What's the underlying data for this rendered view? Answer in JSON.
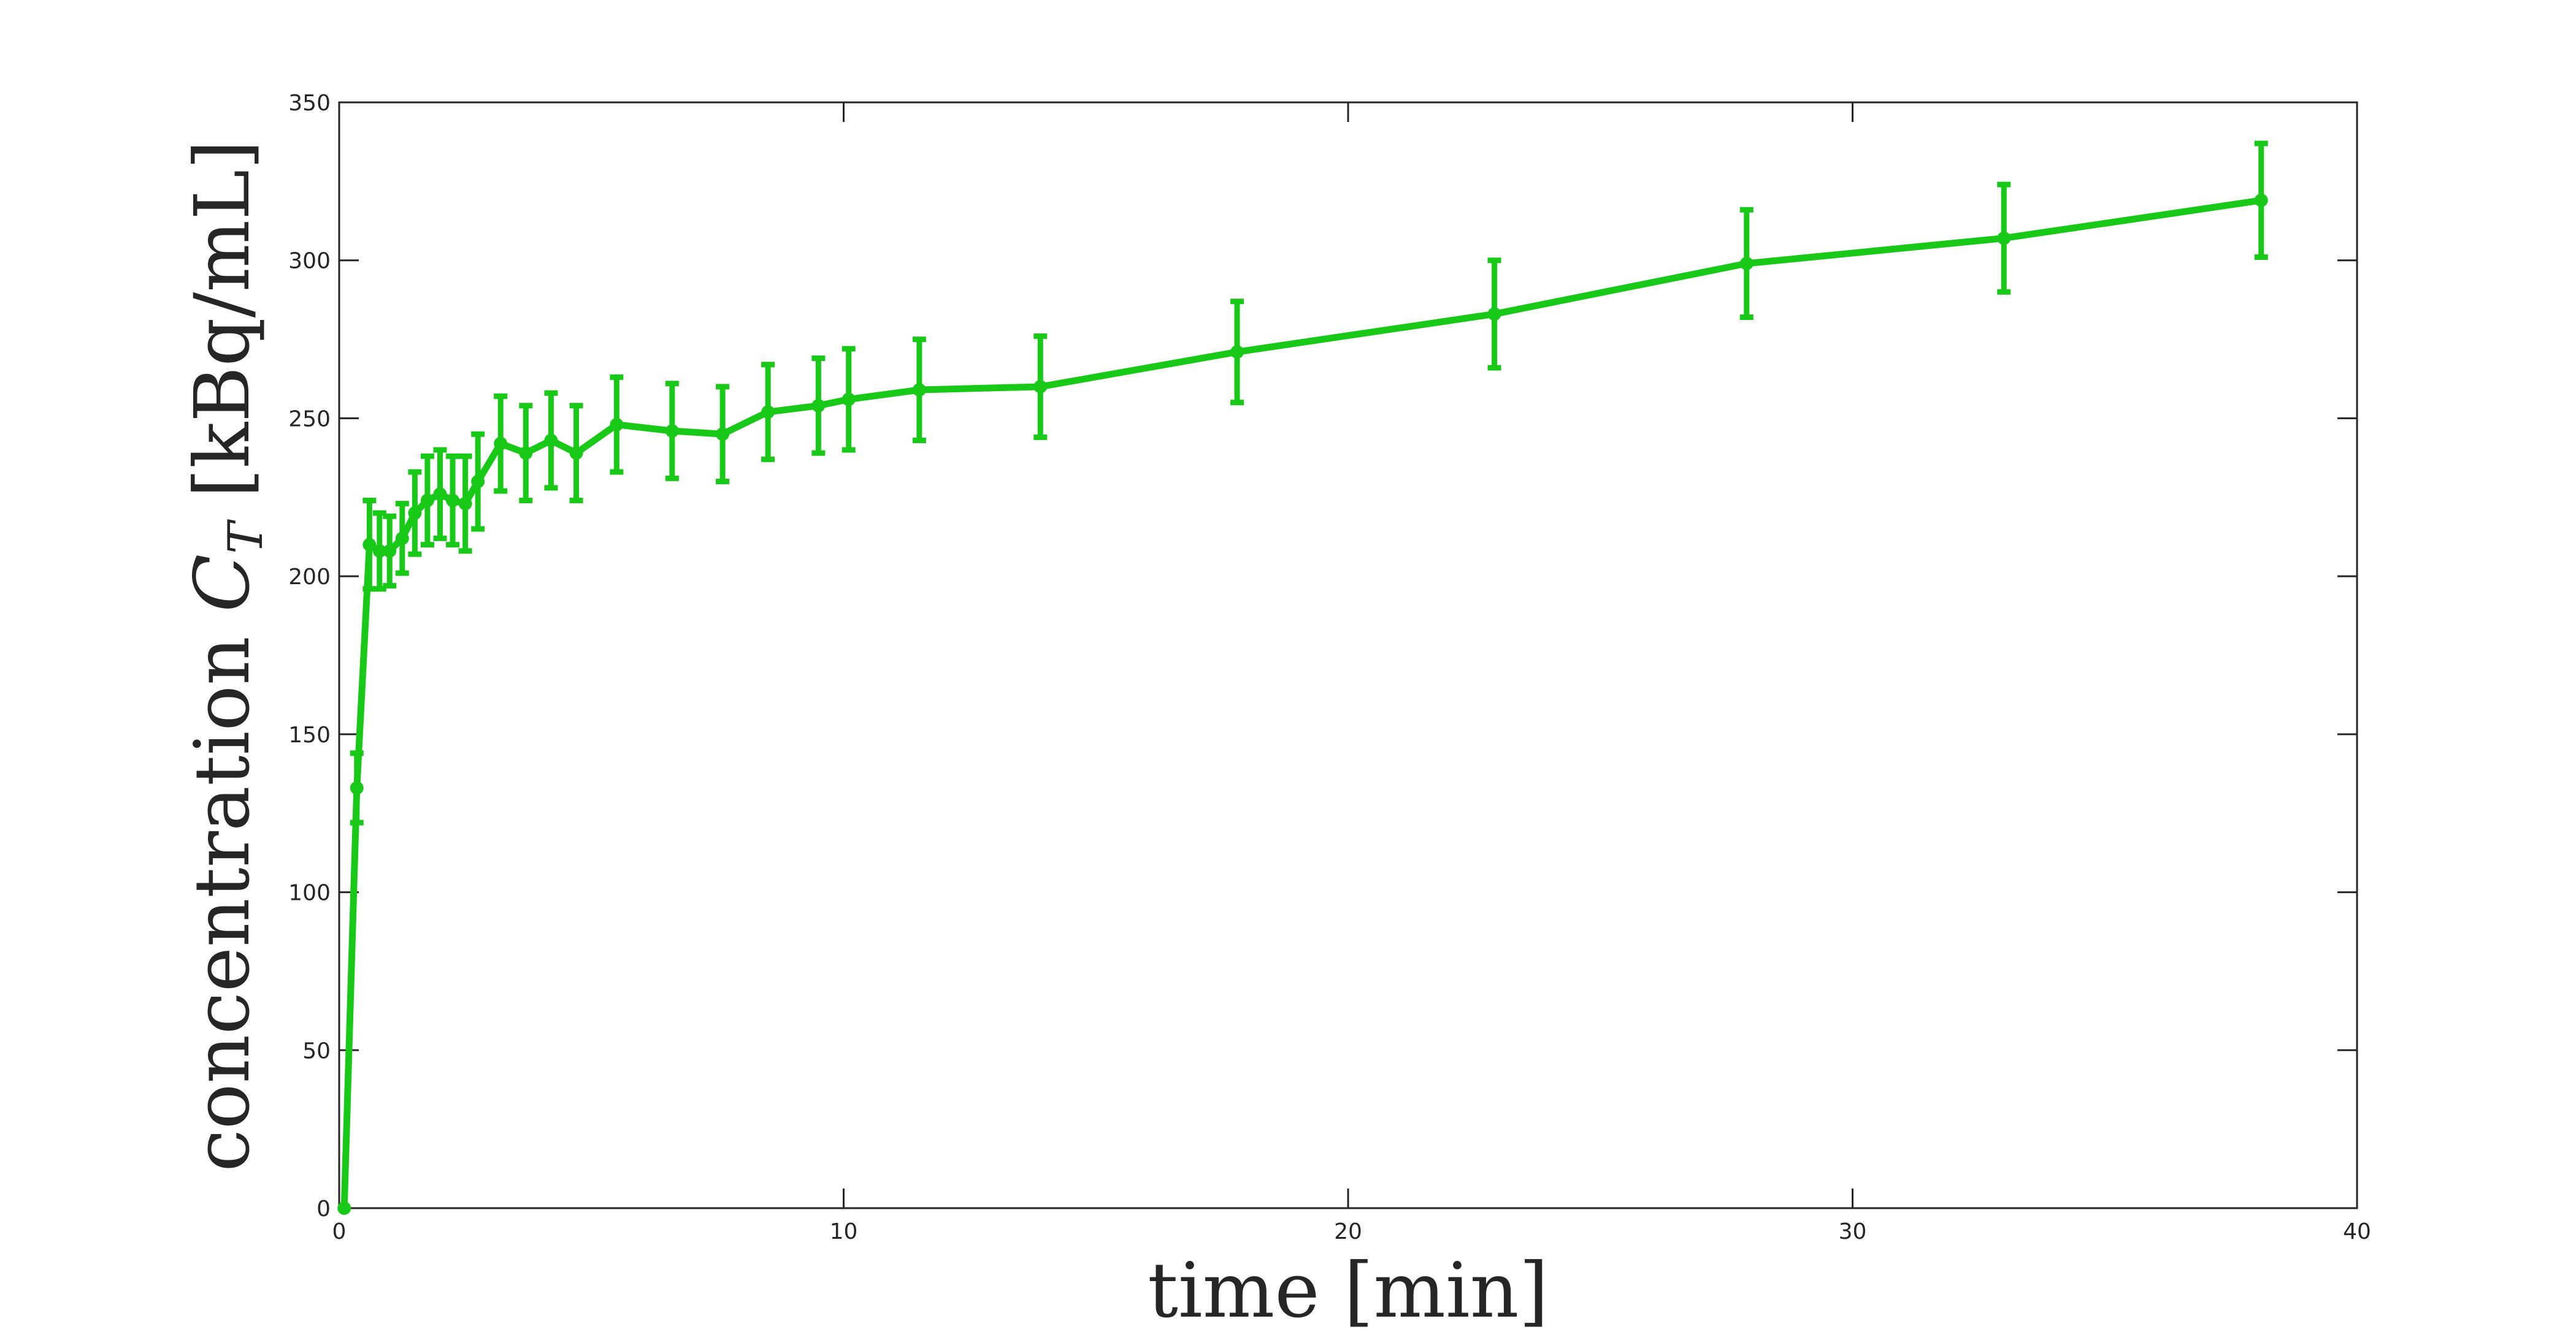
{
  "chart_data": {
    "type": "line",
    "title": "",
    "xlabel": "time [min]",
    "ylabel": {
      "prefix": "concentration ",
      "symbol": "C",
      "subscript": "T",
      "unit": " [kBq/mL]"
    },
    "xlim": [
      0,
      40
    ],
    "ylim": [
      0,
      350
    ],
    "xticks": [
      0,
      10,
      20,
      30,
      40
    ],
    "yticks": [
      0,
      50,
      100,
      150,
      200,
      250,
      300,
      350
    ],
    "grid": false,
    "legend": "none",
    "series": [
      {
        "color": "#18c918",
        "x": [
          0.1,
          0.35,
          0.6,
          0.8,
          1.0,
          1.25,
          1.5,
          1.75,
          2.0,
          2.25,
          2.5,
          2.75,
          3.2,
          3.7,
          4.2,
          4.7,
          5.5,
          6.6,
          7.6,
          8.5,
          9.5,
          10.1,
          11.5,
          13.9,
          17.8,
          22.9,
          27.9,
          33.0,
          38.1
        ],
        "y": [
          0,
          133,
          210,
          208,
          208,
          212,
          220,
          224,
          226,
          224,
          223,
          230,
          242,
          239,
          243,
          239,
          248,
          246,
          245,
          252,
          254,
          256,
          259,
          260,
          271,
          283,
          299,
          307,
          319
        ],
        "err": [
          0,
          11,
          14,
          12,
          11,
          11,
          13,
          14,
          14,
          14,
          15,
          15,
          15,
          15,
          15,
          15,
          15,
          15,
          15,
          15,
          15,
          16,
          16,
          16,
          16,
          17,
          17,
          17,
          18
        ]
      }
    ]
  }
}
